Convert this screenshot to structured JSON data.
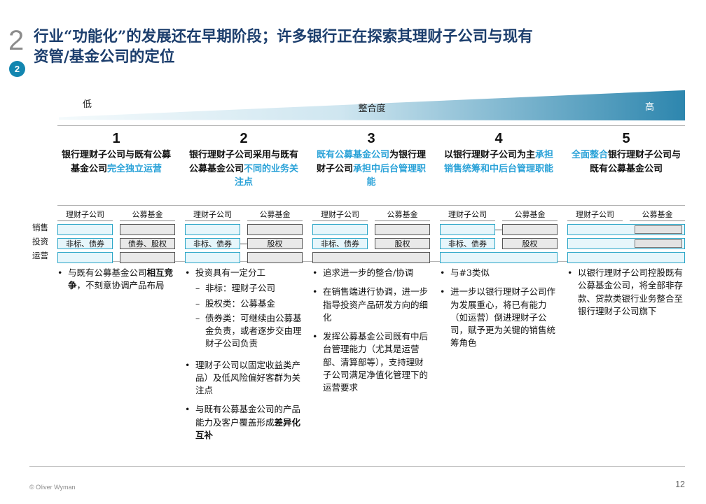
{
  "header": {
    "chapter_number": "2",
    "badge": "2",
    "title_line1": "行业“功能化”的发展还在早期阶段；许多银行正在探索其理财子公司与现有",
    "title_line2": "资管/基金公司的定位"
  },
  "arrow": {
    "left_label": "低",
    "center_label": "整合度",
    "right_label": "高",
    "gradient_start": "#f4fafc",
    "gradient_end": "#2d86ae"
  },
  "row_labels": [
    "销售",
    "投资",
    "运营"
  ],
  "diagram_headers": {
    "left": "理财子公司",
    "right": "公募基金"
  },
  "colors": {
    "navy_title": "#1c3e6d",
    "highlight_blue": "#2aa2d8",
    "badge_teal": "#1386b0",
    "box_blue_fill": "#e7f6fb",
    "box_blue_border": "#2ba6c7",
    "box_gray_fill": "#e9e9e9"
  },
  "columns": [
    {
      "number": "1",
      "title": [
        {
          "t": "银行理财子公司与既有公募基金公司"
        },
        {
          "t": "完全独立运营",
          "c": "hl"
        }
      ],
      "diagram": {
        "invest_left": "非标、债券",
        "invest_right": "债券、股权"
      },
      "bullets": [
        {
          "parts": [
            {
              "t": "与既有公募基金公司"
            },
            {
              "t": "相互竞争",
              "b": true
            },
            {
              "t": "，不刻意协调产品布局"
            }
          ]
        }
      ]
    },
    {
      "number": "2",
      "title": [
        {
          "t": "银行理财子公司采用与既有公募基金公司"
        },
        {
          "t": "不同的业务关注点",
          "c": "hl"
        }
      ],
      "diagram": {
        "invest_left": "非标、债券",
        "invest_right": "股权"
      },
      "bullets": [
        {
          "parts": [
            {
              "t": "投资具有一定分工"
            }
          ],
          "subs": [
            "非标：理财子公司",
            "股权类：公募基金",
            "债券类：可继续由公募基金负责，或者逐步交由理财子公司负责"
          ]
        },
        {
          "parts": [
            {
              "t": "理财子公司以固定收益类产品）及低风险偏好客群为关注点"
            }
          ]
        },
        {
          "parts": [
            {
              "t": "与既有公募基金公司的产品能力及客户覆盖形成"
            },
            {
              "t": "差异化互补",
              "b": true
            }
          ]
        }
      ]
    },
    {
      "number": "3",
      "title": [
        {
          "t": "既有公募基金公司",
          "c": "hl"
        },
        {
          "t": "为银行理财子公司"
        },
        {
          "t": "承担中后台管理职能",
          "c": "hl"
        }
      ],
      "diagram": {
        "invest_left": "非标、债券",
        "invest_right": "股权"
      },
      "bullets": [
        {
          "parts": [
            {
              "t": "追求进一步的整合/协调"
            }
          ]
        },
        {
          "parts": [
            {
              "t": "在销售端进行协调，进一步指导投资产品研发方向的细化"
            }
          ]
        },
        {
          "parts": [
            {
              "t": "发挥公募基金公司既有中后台管理能力（尤其是运营部、清算部等），支持理财子公司满足净值化管理下的运营要求"
            }
          ]
        }
      ]
    },
    {
      "number": "4",
      "title": [
        {
          "t": "以银行理财子公司为主"
        },
        {
          "t": "承担销售统筹和中后台管理职能",
          "c": "hl"
        }
      ],
      "diagram": {
        "invest_left": "非标、债券",
        "invest_right": "股权"
      },
      "bullets": [
        {
          "parts": [
            {
              "t": "与#3类似"
            }
          ]
        },
        {
          "parts": [
            {
              "t": "进一步以银行理财子公司作为发展重心，将已有能力（如运营）倒进理财子公司，赋予更为关键的销售统筹角色"
            }
          ]
        }
      ]
    },
    {
      "number": "5",
      "title": [
        {
          "t": "全面整合",
          "c": "hl"
        },
        {
          "t": "银行理财子公司与既有公募基金公司"
        }
      ],
      "diagram": {},
      "bullets": [
        {
          "parts": [
            {
              "t": "以银行理财子公司控股既有公募基金公司，将全部非存款、贷款类银行业务整合至银行理财子公司旗下"
            }
          ]
        }
      ]
    }
  ],
  "footer": {
    "copyright": "© Oliver Wyman",
    "page": "12"
  }
}
